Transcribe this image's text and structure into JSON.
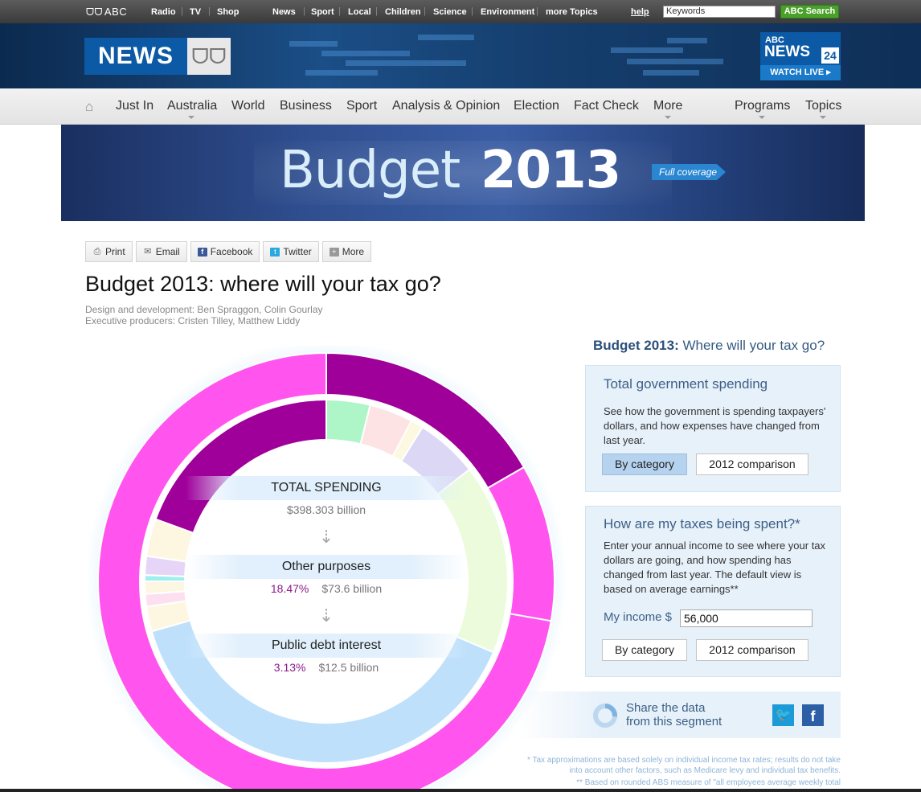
{
  "topbar": {
    "logo": "ABC",
    "links_left": [
      "Radio",
      "TV",
      "Shop"
    ],
    "links_right": [
      "News",
      "Sport",
      "Local",
      "Children",
      "Science",
      "Environment",
      "more Topics"
    ],
    "help": "help",
    "search_value": "Keywords",
    "search_button": "ABC Search"
  },
  "header": {
    "news_logo": "NEWS",
    "abc24_line1": "ABC",
    "abc24_line2": "NEWS",
    "abc24_num": "24",
    "watch_live": "WATCH LIVE ▸"
  },
  "nav": {
    "items": [
      "Just In",
      "Australia",
      "World",
      "Business",
      "Sport",
      "Analysis & Opinion",
      "Election",
      "Fact Check",
      "More",
      "Programs",
      "Topics"
    ]
  },
  "banner": {
    "title_light": "Budget",
    "title_bold": "2013",
    "full_coverage": "Full coverage"
  },
  "share": {
    "buttons": [
      "Print",
      "Email",
      "Facebook",
      "Twitter",
      "More"
    ]
  },
  "article": {
    "title": "Budget 2013: where will your tax go?",
    "credit1": "Design and development: Ben Spraggon, Colin Gourlay",
    "credit2": "Executive producers: Cristen Tilley, Matthew Liddy"
  },
  "center": {
    "total_label": "TOTAL SPENDING",
    "total_value": "$398.303 billion",
    "level1_label": "Other purposes",
    "level1_pct": "18.47%",
    "level1_value": "$73.6 billion",
    "level2_label": "Public debt interest",
    "level2_pct": "3.13%",
    "level2_value": "$12.5 billion"
  },
  "panel": {
    "title_bold": "Budget 2013:",
    "title_rest": " Where will your tax go?",
    "spending_heading": "Total government spending",
    "spending_text": "See how the government is spending taxpayers' dollars, and how expenses have changed from last year.",
    "btn_category": "By category",
    "btn_comparison": "2012 comparison",
    "taxes_heading": "How are my taxes being spent?*",
    "taxes_text": "Enter your annual income to see where your tax dollars are going, and how spending has changed from last year. The default view is based on average earnings**",
    "income_label": "My income $",
    "income_value": "56,000",
    "share_line1": "Share the data",
    "share_line2": "from this segment"
  },
  "footnotes": {
    "note1": "* Tax approximations are based solely on individual income tax rates; results do not take into account other factors, such as Medicare levy and individual tax benefits.",
    "note2": "** Based on rounded ABS measure of \"all employees average weekly total"
  },
  "colors": {
    "magenta": "#ff55ee",
    "purple": "#a0009a",
    "light_blue": "#bfe0fb",
    "accent_blue": "#0c5aa6"
  }
}
